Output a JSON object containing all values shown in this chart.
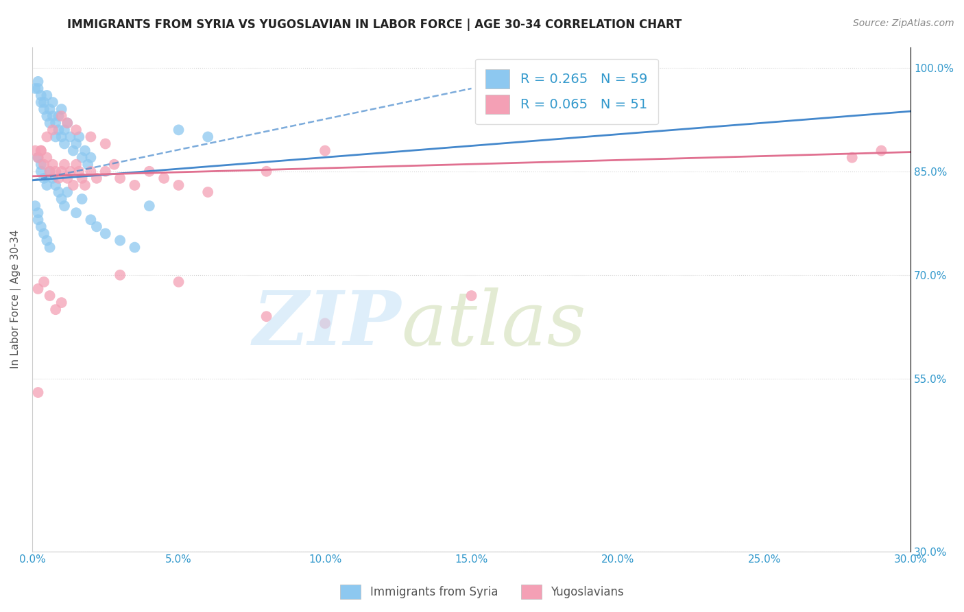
{
  "title": "IMMIGRANTS FROM SYRIA VS YUGOSLAVIAN IN LABOR FORCE | AGE 30-34 CORRELATION CHART",
  "source_text": "Source: ZipAtlas.com",
  "ylabel": "In Labor Force | Age 30-34",
  "xlim": [
    0.0,
    0.3
  ],
  "ylim": [
    0.3,
    1.03
  ],
  "xtick_labels": [
    "0.0%",
    "5.0%",
    "10.0%",
    "15.0%",
    "20.0%",
    "25.0%",
    "30.0%"
  ],
  "xtick_values": [
    0.0,
    0.05,
    0.1,
    0.15,
    0.2,
    0.25,
    0.3
  ],
  "ytick_labels": [
    "100.0%",
    "85.0%",
    "70.0%",
    "55.0%",
    "30.0%"
  ],
  "ytick_values": [
    1.0,
    0.85,
    0.7,
    0.55,
    0.3
  ],
  "syria_color": "#8DC8F0",
  "yugoslavian_color": "#F4A0B5",
  "syria_line_color": "#4488CC",
  "yugoslavian_line_color": "#E07090",
  "syria_R": 0.265,
  "syria_N": 59,
  "yugoslavian_R": 0.065,
  "yugoslavian_N": 51,
  "legend_label_syria": "Immigrants from Syria",
  "legend_label_yugoslavian": "Yugoslavians",
  "syria_scatter_x": [
    0.001,
    0.002,
    0.002,
    0.003,
    0.003,
    0.004,
    0.004,
    0.005,
    0.005,
    0.006,
    0.006,
    0.007,
    0.007,
    0.008,
    0.008,
    0.009,
    0.009,
    0.01,
    0.01,
    0.011,
    0.011,
    0.012,
    0.013,
    0.014,
    0.015,
    0.016,
    0.017,
    0.018,
    0.019,
    0.02,
    0.002,
    0.003,
    0.003,
    0.004,
    0.005,
    0.006,
    0.007,
    0.008,
    0.009,
    0.01,
    0.011,
    0.012,
    0.015,
    0.017,
    0.02,
    0.022,
    0.025,
    0.03,
    0.035,
    0.04,
    0.001,
    0.002,
    0.002,
    0.003,
    0.004,
    0.005,
    0.006,
    0.05,
    0.06
  ],
  "syria_scatter_y": [
    0.97,
    0.97,
    0.98,
    0.95,
    0.96,
    0.94,
    0.95,
    0.96,
    0.93,
    0.94,
    0.92,
    0.95,
    0.93,
    0.9,
    0.92,
    0.91,
    0.93,
    0.94,
    0.9,
    0.91,
    0.89,
    0.92,
    0.9,
    0.88,
    0.89,
    0.9,
    0.87,
    0.88,
    0.86,
    0.87,
    0.87,
    0.86,
    0.85,
    0.84,
    0.83,
    0.85,
    0.84,
    0.83,
    0.82,
    0.81,
    0.8,
    0.82,
    0.79,
    0.81,
    0.78,
    0.77,
    0.76,
    0.75,
    0.74,
    0.8,
    0.8,
    0.79,
    0.78,
    0.77,
    0.76,
    0.75,
    0.74,
    0.91,
    0.9
  ],
  "yugoslavian_scatter_x": [
    0.001,
    0.002,
    0.003,
    0.004,
    0.005,
    0.006,
    0.007,
    0.008,
    0.009,
    0.01,
    0.011,
    0.012,
    0.013,
    0.014,
    0.015,
    0.016,
    0.017,
    0.018,
    0.02,
    0.022,
    0.025,
    0.028,
    0.03,
    0.035,
    0.04,
    0.045,
    0.05,
    0.06,
    0.08,
    0.1,
    0.003,
    0.005,
    0.007,
    0.01,
    0.012,
    0.015,
    0.02,
    0.025,
    0.28,
    0.29,
    0.002,
    0.004,
    0.006,
    0.008,
    0.01,
    0.03,
    0.05,
    0.08,
    0.1,
    0.15,
    0.002
  ],
  "yugoslavian_scatter_y": [
    0.88,
    0.87,
    0.88,
    0.86,
    0.87,
    0.85,
    0.86,
    0.85,
    0.84,
    0.85,
    0.86,
    0.84,
    0.85,
    0.83,
    0.86,
    0.85,
    0.84,
    0.83,
    0.85,
    0.84,
    0.85,
    0.86,
    0.84,
    0.83,
    0.85,
    0.84,
    0.83,
    0.82,
    0.85,
    0.88,
    0.88,
    0.9,
    0.91,
    0.93,
    0.92,
    0.91,
    0.9,
    0.89,
    0.87,
    0.88,
    0.68,
    0.69,
    0.67,
    0.65,
    0.66,
    0.7,
    0.69,
    0.64,
    0.63,
    0.67,
    0.53
  ],
  "syria_trend_x": [
    0.0,
    0.3
  ],
  "syria_trend_y": [
    0.837,
    0.937
  ],
  "yugoslavian_trend_x": [
    0.0,
    0.3
  ],
  "yugoslavian_trend_y": [
    0.843,
    0.878
  ]
}
